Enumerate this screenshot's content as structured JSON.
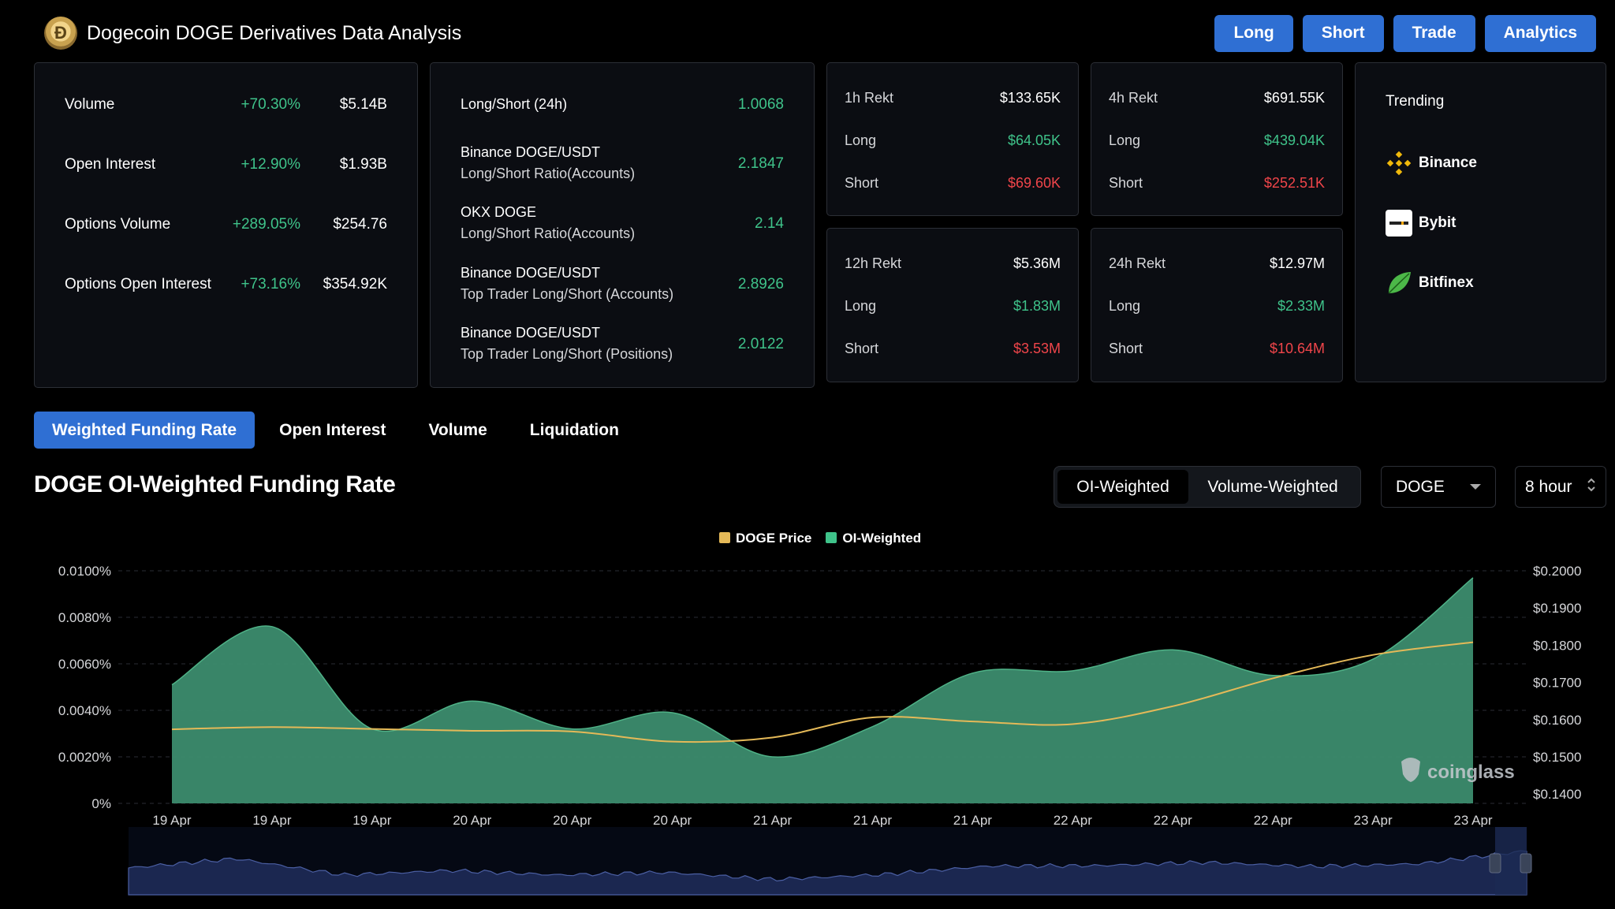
{
  "header": {
    "title": "Dogecoin DOGE Derivatives Data Analysis",
    "buttons": [
      "Long",
      "Short",
      "Trade",
      "Analytics"
    ]
  },
  "stats": [
    {
      "label": "Volume",
      "pct": "+70.30%",
      "value": "$5.14B"
    },
    {
      "label": "Open Interest",
      "pct": "+12.90%",
      "value": "$1.93B"
    },
    {
      "label": "Options Volume",
      "pct": "+289.05%",
      "value": "$254.76"
    },
    {
      "label": "Options Open Interest",
      "pct": "+73.16%",
      "value": "$354.92K"
    }
  ],
  "long_short": {
    "head_label": "Long/Short (24h)",
    "head_value": "1.0068",
    "rows": [
      {
        "line1": "Binance DOGE/USDT",
        "line2": "Long/Short Ratio(Accounts)",
        "value": "2.1847"
      },
      {
        "line1": "OKX DOGE",
        "line2": "Long/Short Ratio(Accounts)",
        "value": "2.14"
      },
      {
        "line1": "Binance DOGE/USDT",
        "line2": "Top Trader Long/Short (Accounts)",
        "value": "2.8926"
      },
      {
        "line1": "Binance DOGE/USDT",
        "line2": "Top Trader Long/Short (Positions)",
        "value": "2.0122"
      }
    ]
  },
  "rekt": [
    {
      "title": "1h Rekt",
      "total": "$133.65K",
      "long_label": "Long",
      "long": "$64.05K",
      "short_label": "Short",
      "short": "$69.60K"
    },
    {
      "title": "4h Rekt",
      "total": "$691.55K",
      "long_label": "Long",
      "long": "$439.04K",
      "short_label": "Short",
      "short": "$252.51K"
    },
    {
      "title": "12h Rekt",
      "total": "$5.36M",
      "long_label": "Long",
      "long": "$1.83M",
      "short_label": "Short",
      "short": "$3.53M"
    },
    {
      "title": "24h Rekt",
      "total": "$12.97M",
      "long_label": "Long",
      "long": "$2.33M",
      "short_label": "Short",
      "short": "$10.64M"
    }
  ],
  "trending": {
    "label": "Trending",
    "items": [
      "Binance",
      "Bybit",
      "Bitfinex"
    ]
  },
  "tabs": [
    "Weighted Funding Rate",
    "Open Interest",
    "Volume",
    "Liquidation"
  ],
  "chart_title": "DOGE OI-Weighted Funding Rate",
  "weighting": {
    "options": [
      "OI-Weighted",
      "Volume-Weighted"
    ],
    "selected": "OI-Weighted"
  },
  "symbol_select": "DOGE",
  "interval_select": "8 hour",
  "watermark": "coinglass",
  "colors": {
    "accent": "#2f6fd3",
    "positive": "#3fc38a",
    "negative": "#f0454a",
    "price_line": "#e4b958",
    "area": "#3c8c6e"
  },
  "chart_data": {
    "type": "area",
    "x": [
      "19 Apr",
      "19 Apr",
      "19 Apr",
      "20 Apr",
      "20 Apr",
      "20 Apr",
      "21 Apr",
      "21 Apr",
      "21 Apr",
      "22 Apr",
      "22 Apr",
      "22 Apr",
      "23 Apr",
      "23 Apr"
    ],
    "legend": [
      "DOGE Price",
      "OI-Weighted"
    ],
    "legend_position": "top-center",
    "y_left": {
      "ticks": [
        "0%",
        "0.0020%",
        "0.0040%",
        "0.0060%",
        "0.0080%",
        "0.0100%"
      ],
      "range": [
        0,
        0.01
      ]
    },
    "y_right": {
      "ticks": [
        "$0.1400",
        "$0.1500",
        "$0.1600",
        "$0.1700",
        "$0.1800",
        "$0.1900",
        "$0.2000"
      ],
      "range": [
        0.1375,
        0.2
      ]
    },
    "series": [
      {
        "name": "OI-Weighted",
        "axis": "left",
        "values": [
          0.0051,
          0.0076,
          0.0032,
          0.0044,
          0.0032,
          0.0039,
          0.002,
          0.0033,
          0.0056,
          0.0057,
          0.0066,
          0.0055,
          0.0062,
          0.0097
        ]
      },
      {
        "name": "DOGE Price",
        "axis": "right",
        "values": [
          0.1574,
          0.158,
          0.1575,
          0.157,
          0.1568,
          0.1541,
          0.1552,
          0.1606,
          0.1595,
          0.1588,
          0.1636,
          0.1711,
          0.1774,
          0.1808
        ]
      }
    ],
    "grid": true
  }
}
